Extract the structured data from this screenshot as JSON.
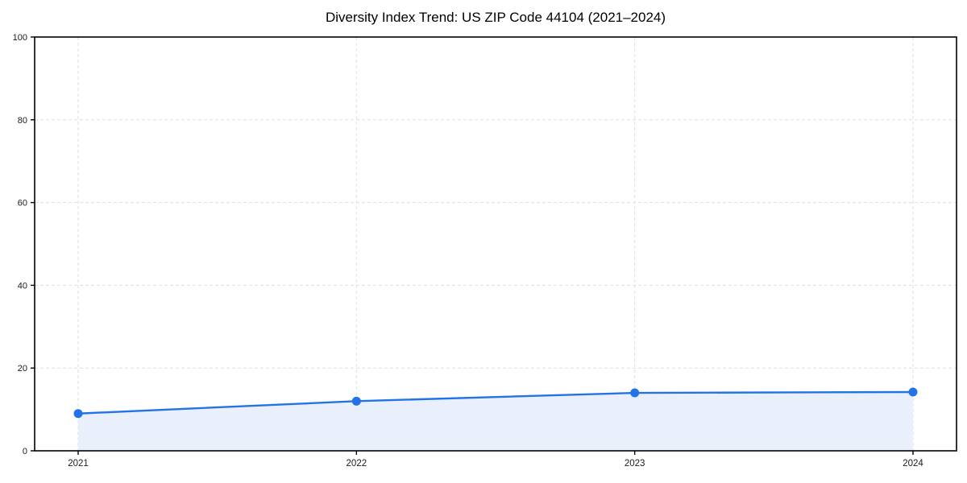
{
  "figure": {
    "background": "#ffffff"
  },
  "chart_data": {
    "type": "line",
    "title": "Diversity Index Trend: US ZIP Code 44104 (2021–2024)",
    "categories": [
      "2021",
      "2022",
      "2023",
      "2024"
    ],
    "series": [
      {
        "name": "Diversity Index",
        "values": [
          9,
          12,
          14,
          14.2
        ]
      }
    ],
    "xlabel": "",
    "ylabel": "",
    "ylim": [
      0,
      100
    ],
    "yticks": [
      0,
      20,
      40,
      60,
      80,
      100
    ],
    "grid": true,
    "grid_style": "dashed",
    "legend_position": "none",
    "area_fill": true,
    "markers": true,
    "colors": {
      "line": "#2273e6",
      "marker": "#2273e6",
      "area_fill": "#e9f0fb",
      "grid": "#dedede",
      "axis": "#000000",
      "tick_text": "#1a1a1a",
      "title_text": "#000000",
      "background": "#ffffff"
    }
  }
}
